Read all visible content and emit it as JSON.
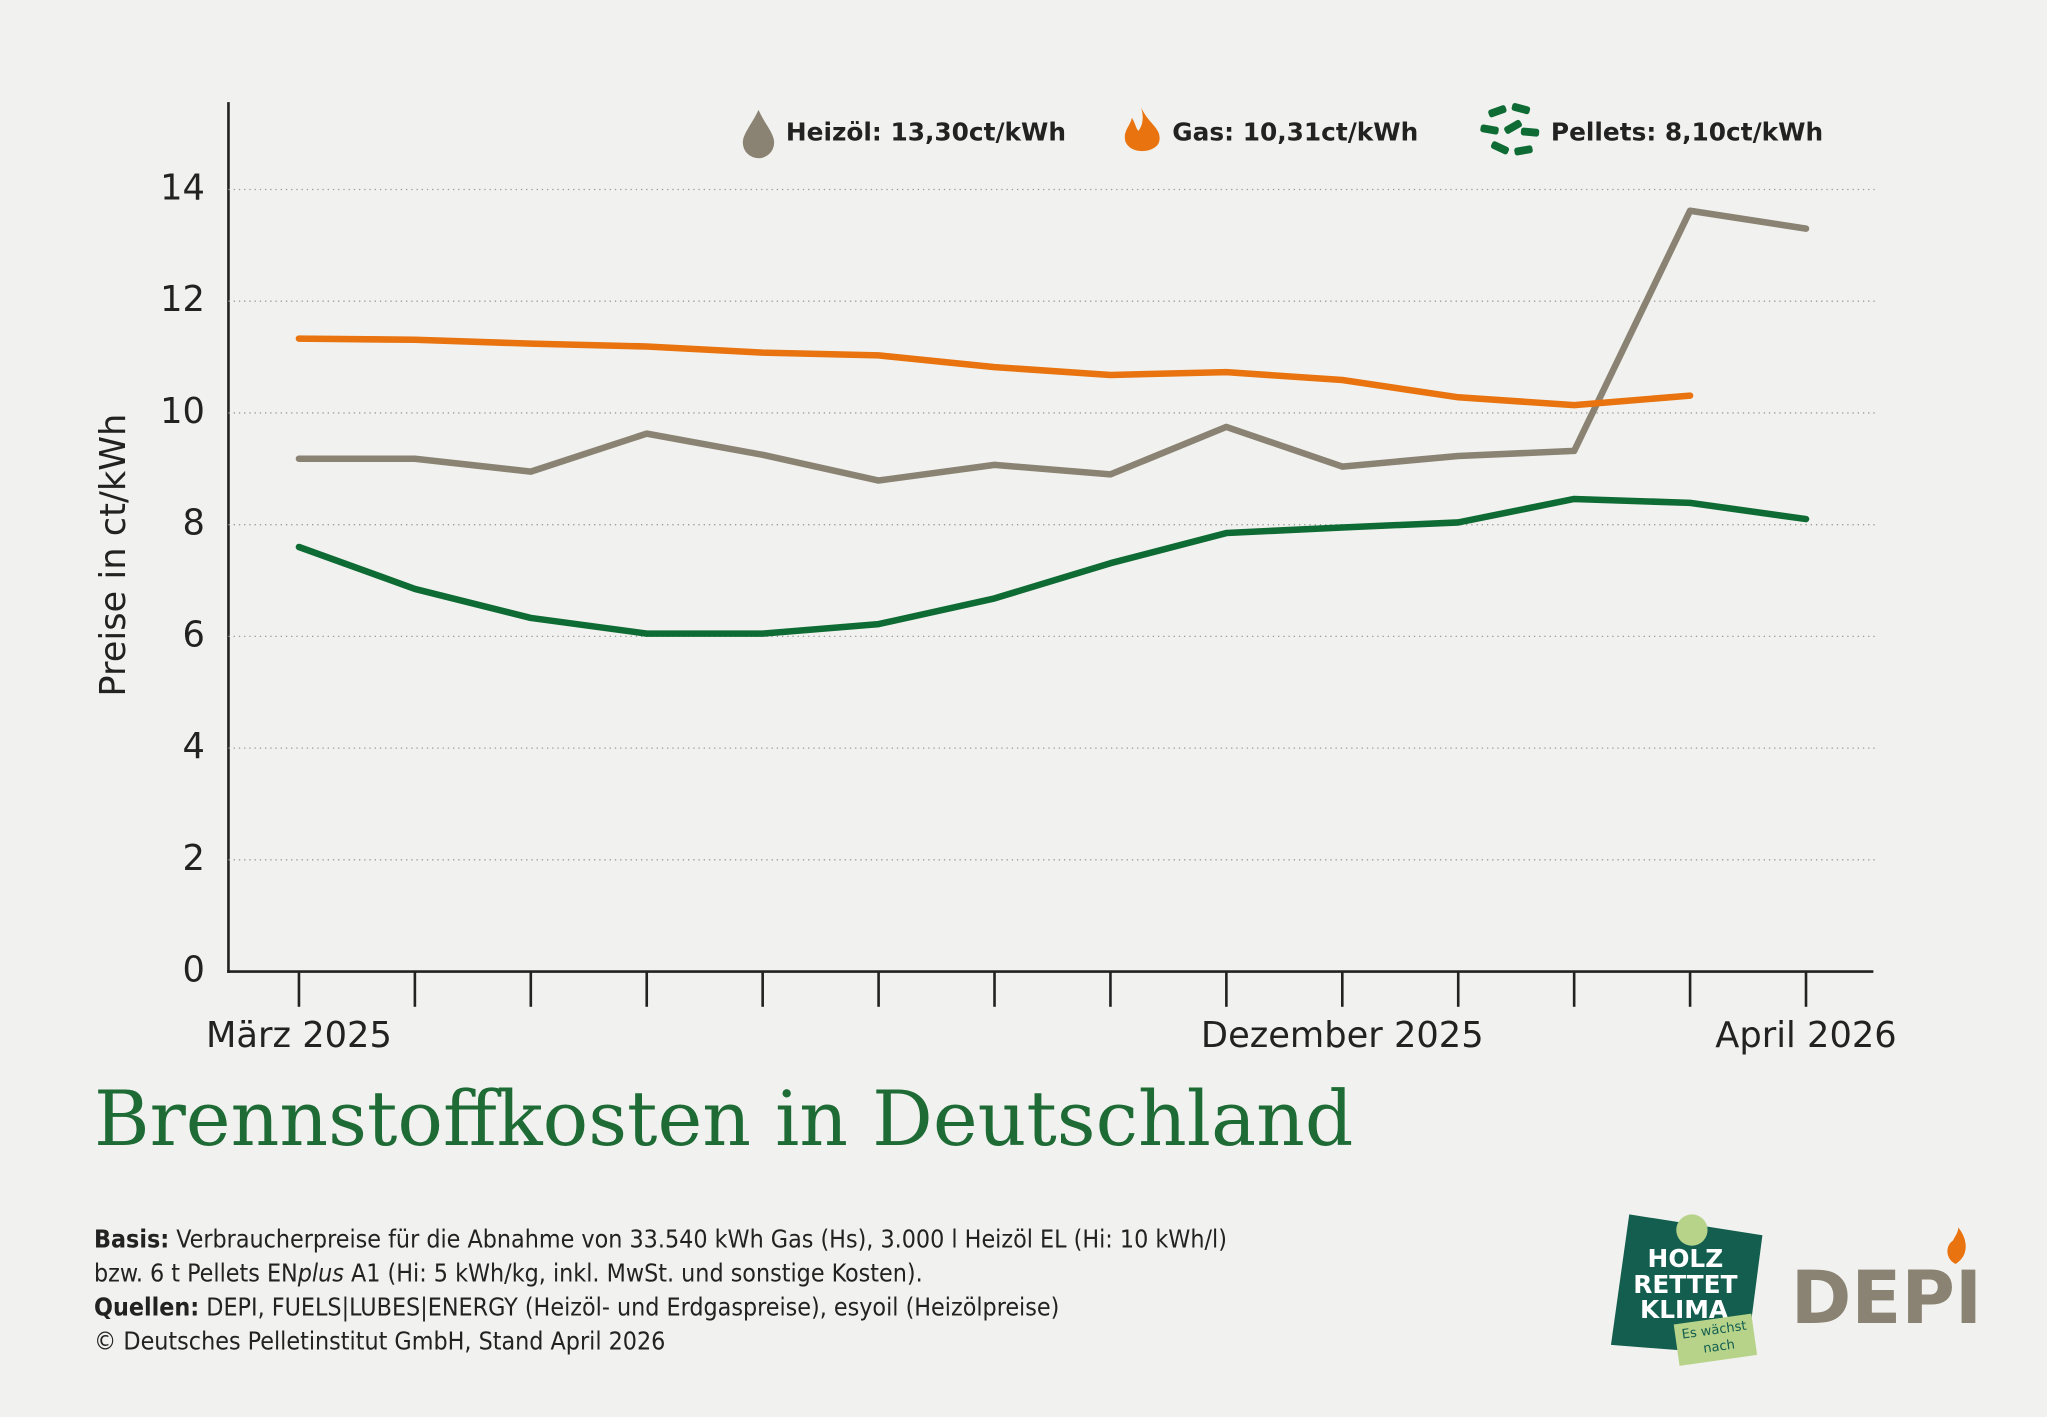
{
  "chart_data": {
    "type": "line",
    "ylabel": "Preise in ct/kWh",
    "title": "Brennstoffkosten in Deutschland",
    "categories": [
      "März 2025",
      null,
      null,
      null,
      null,
      null,
      null,
      null,
      null,
      "Dezember 2025",
      null,
      null,
      null,
      "April 2026"
    ],
    "series": [
      {
        "name": "Heizöl: 13,30ct/kWh",
        "color": "#8a8373",
        "values": [
          9.18,
          9.18,
          8.95,
          9.63,
          9.25,
          8.79,
          9.07,
          8.9,
          9.75,
          9.04,
          9.23,
          9.32,
          13.62,
          13.3
        ]
      },
      {
        "name": "Gas: 10,31ct/kWh",
        "color": "#e8730f",
        "values": [
          11.33,
          11.31,
          11.24,
          11.19,
          11.08,
          11.03,
          10.82,
          10.68,
          10.73,
          10.59,
          10.28,
          10.14,
          10.31,
          null
        ]
      },
      {
        "name": "Pellets: 8,10ct/kWh",
        "color": "#0f6b34",
        "values": [
          7.6,
          6.85,
          6.33,
          6.05,
          6.05,
          6.22,
          6.68,
          7.31,
          7.85,
          7.95,
          8.04,
          8.46,
          8.39,
          8.1
        ]
      }
    ],
    "ylim": [
      0,
      15.5
    ],
    "yticks": [
      0,
      2,
      4,
      6,
      8,
      10,
      12,
      14
    ],
    "grid": true
  },
  "footer": {
    "basis_label": "Basis:",
    "basis_line1": " Verbraucherpreise für die Abnahme von 33.540 kWh Gas (Hs), 3.000 l Heizöl EL (Hi: 10 kWh/l)",
    "basis_line2a": "bzw. 6 t Pellets EN",
    "basis_line2b": "plus",
    "basis_line2c": " A1 (Hi: 5 kWh/kg, inkl. MwSt. und sonstige Kosten).",
    "sources_label": "Quellen:",
    "sources_text": " DEPI, FUELS|LUBES|ENERGY (Heizöl- und Erdgaspreise), esyoil (Heizölpreise)",
    "copyright": "© Deutsches Pelletinstitut GmbH, Stand April 2026"
  },
  "logos": {
    "holz": [
      "HOLZ",
      "RETTET",
      "KLIMA"
    ],
    "holz_tag": [
      "Es wächst",
      "nach"
    ],
    "depi": "DEPI"
  }
}
